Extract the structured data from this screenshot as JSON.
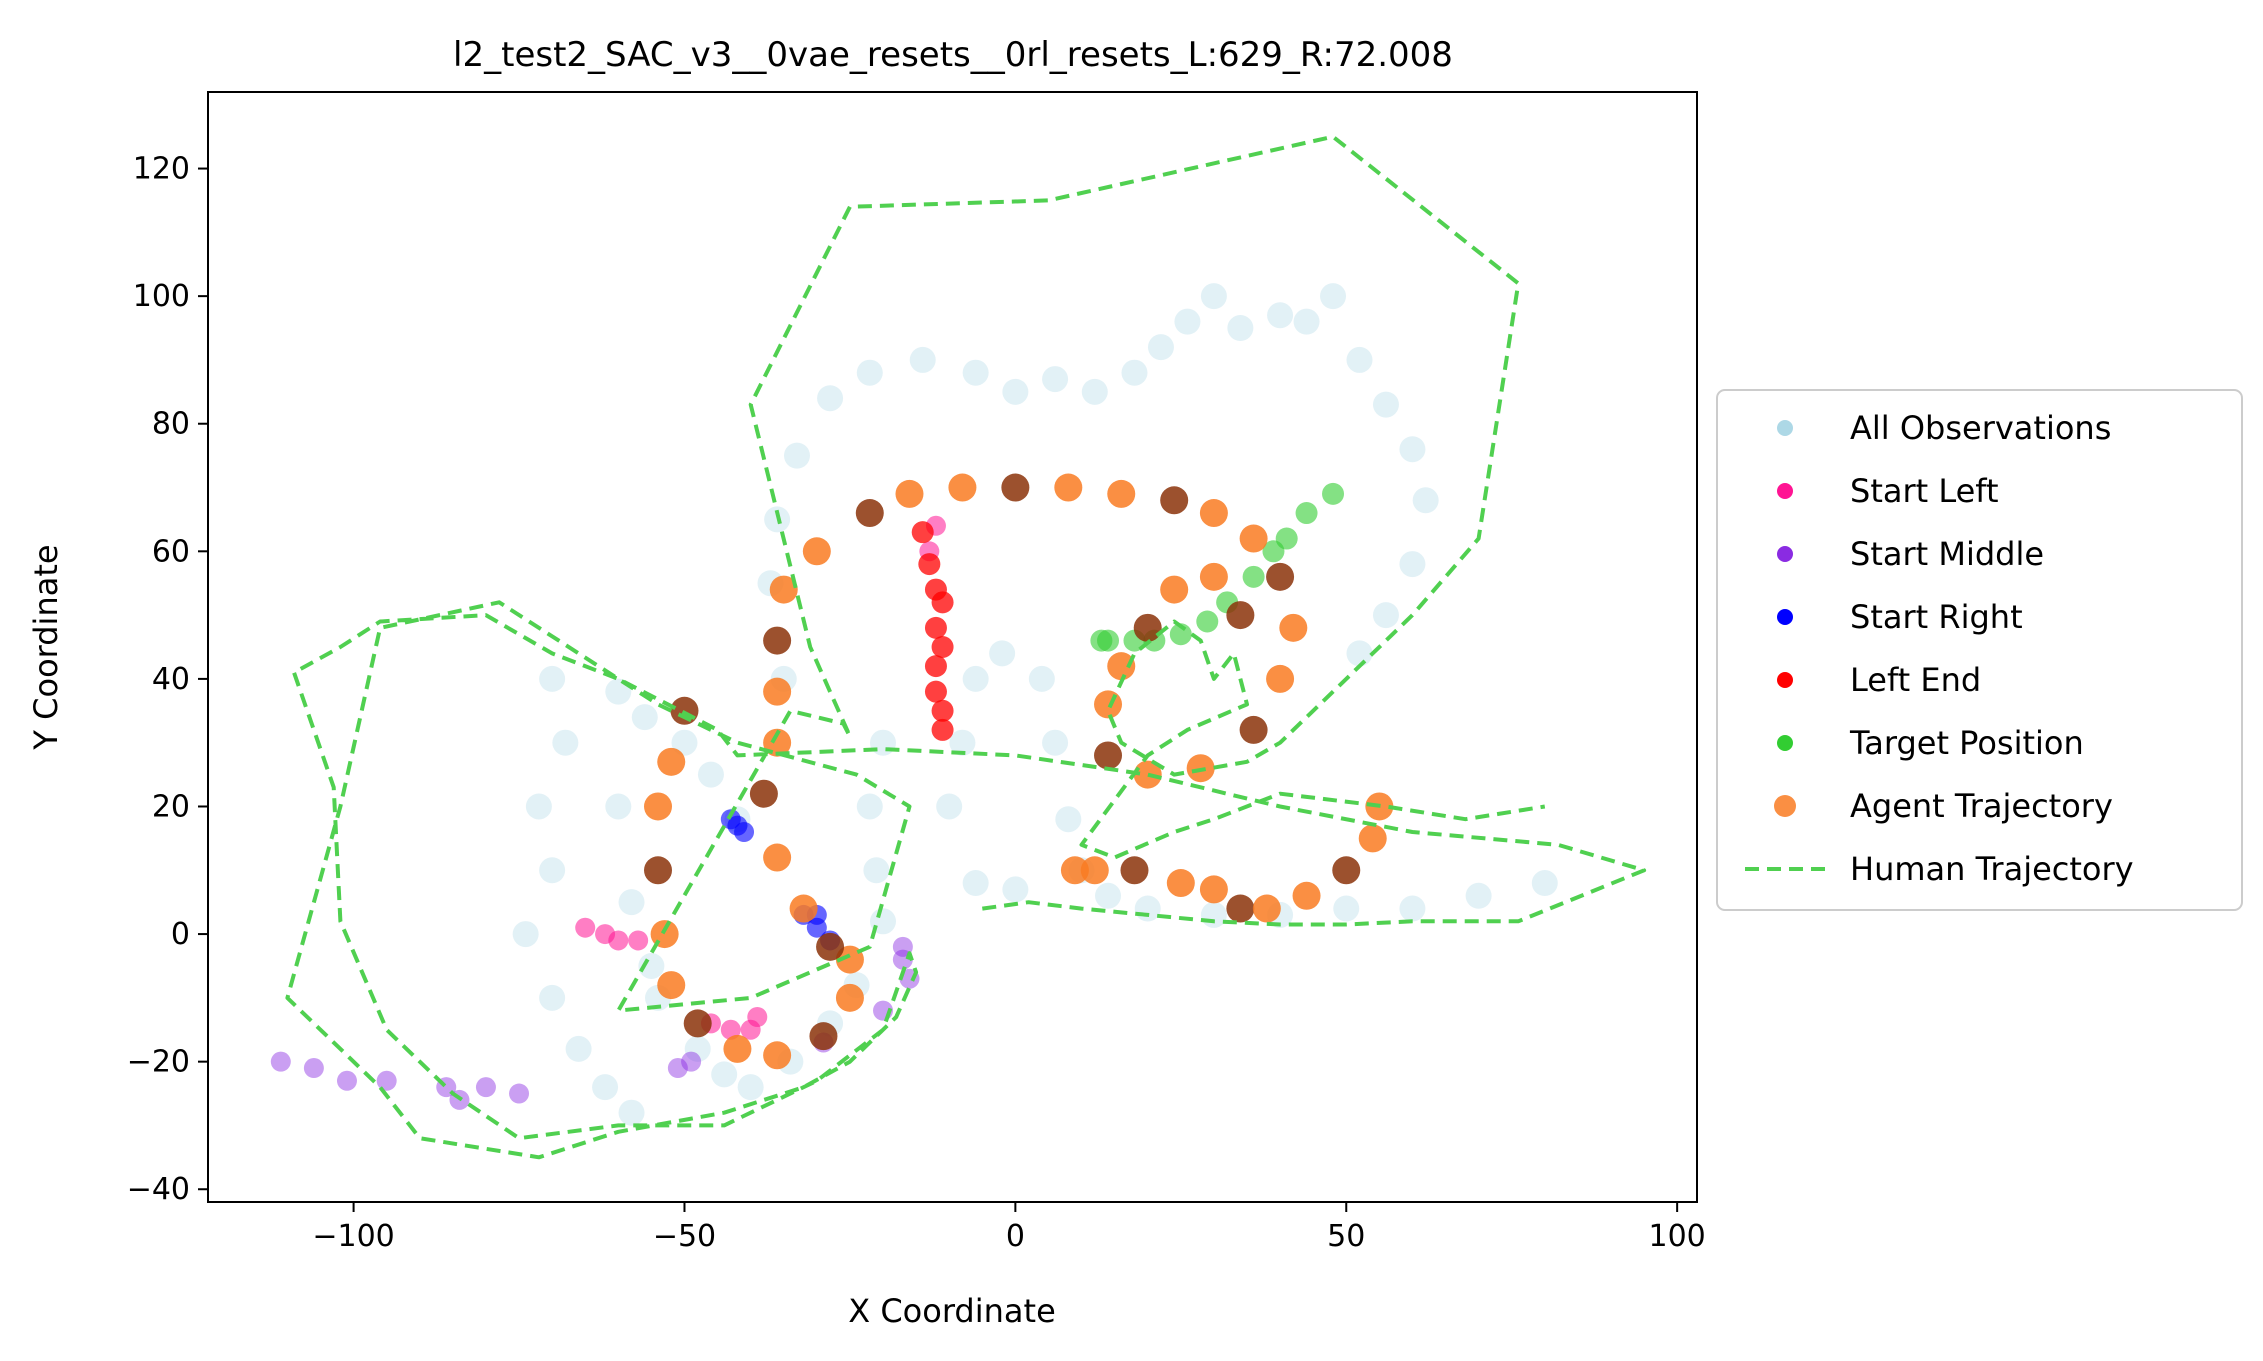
{
  "chart_data": {
    "type": "scatter",
    "title": "l2_test2_SAC_v3__0vae_resets__0rl_resets_L:629_R:72.008",
    "xlabel": "X Coordinate",
    "ylabel": "Y Coordinate",
    "xlim": [
      -122,
      103
    ],
    "ylim": [
      -42,
      132
    ],
    "x_ticks": [
      -100,
      -50,
      0,
      50,
      100
    ],
    "y_ticks": [
      -40,
      -20,
      0,
      20,
      40,
      60,
      80,
      100,
      120
    ],
    "x_tick_labels": [
      "−100",
      "−50",
      "0",
      "50",
      "100"
    ],
    "y_tick_labels": [
      "−40",
      "−20",
      "0",
      "20",
      "40",
      "60",
      "80",
      "100",
      "120"
    ],
    "grid": false,
    "legend_position": "right (outside)",
    "series": [
      {
        "name": "All Observations",
        "color": "#add8e6",
        "marker": "circle",
        "alpha": 0.35,
        "points": [
          [
            -70,
            40
          ],
          [
            -68,
            30
          ],
          [
            -72,
            20
          ],
          [
            -70,
            10
          ],
          [
            -74,
            0
          ],
          [
            -70,
            -10
          ],
          [
            -66,
            -18
          ],
          [
            -62,
            -24
          ],
          [
            -58,
            -28
          ],
          [
            -56,
            34
          ],
          [
            -60,
            20
          ],
          [
            -58,
            5
          ],
          [
            -54,
            -10
          ],
          [
            -44,
            -22
          ],
          [
            -40,
            -24
          ],
          [
            -34,
            -20
          ],
          [
            -28,
            -14
          ],
          [
            -24,
            -8
          ],
          [
            -20,
            2
          ],
          [
            -21,
            10
          ],
          [
            -22,
            20
          ],
          [
            -20,
            30
          ],
          [
            -35,
            40
          ],
          [
            -37,
            55
          ],
          [
            -36,
            65
          ],
          [
            -33,
            75
          ],
          [
            -28,
            84
          ],
          [
            -22,
            88
          ],
          [
            -14,
            90
          ],
          [
            -6,
            88
          ],
          [
            0,
            85
          ],
          [
            6,
            87
          ],
          [
            12,
            85
          ],
          [
            18,
            88
          ],
          [
            22,
            92
          ],
          [
            26,
            96
          ],
          [
            30,
            100
          ],
          [
            34,
            95
          ],
          [
            40,
            97
          ],
          [
            44,
            96
          ],
          [
            48,
            100
          ],
          [
            52,
            90
          ],
          [
            56,
            83
          ],
          [
            60,
            76
          ],
          [
            62,
            68
          ],
          [
            60,
            58
          ],
          [
            56,
            50
          ],
          [
            52,
            44
          ],
          [
            -10,
            20
          ],
          [
            -8,
            30
          ],
          [
            -6,
            40
          ],
          [
            -2,
            44
          ],
          [
            4,
            40
          ],
          [
            6,
            30
          ],
          [
            8,
            18
          ],
          [
            10,
            10
          ],
          [
            14,
            6
          ],
          [
            20,
            4
          ],
          [
            30,
            3
          ],
          [
            40,
            3
          ],
          [
            50,
            4
          ],
          [
            60,
            4
          ],
          [
            70,
            6
          ],
          [
            80,
            8
          ],
          [
            -6,
            8
          ],
          [
            0,
            7
          ],
          [
            -60,
            38
          ],
          [
            -50,
            30
          ],
          [
            -46,
            25
          ],
          [
            -42,
            18
          ],
          [
            -55,
            -5
          ],
          [
            -48,
            -18
          ]
        ]
      },
      {
        "name": "Start Left",
        "color": "#ff1493",
        "marker": "circle",
        "points": [
          [
            -65,
            1
          ],
          [
            -62,
            0
          ],
          [
            -60,
            -1
          ],
          [
            -57,
            -1
          ],
          [
            -46,
            -14
          ],
          [
            -43,
            -15
          ],
          [
            -40,
            -15
          ],
          [
            -39,
            -13
          ],
          [
            -13,
            60
          ],
          [
            -12,
            64
          ]
        ]
      },
      {
        "name": "Start Middle",
        "color": "#8a2be2",
        "marker": "circle",
        "points": [
          [
            -111,
            -20
          ],
          [
            -106,
            -21
          ],
          [
            -101,
            -23
          ],
          [
            -95,
            -23
          ],
          [
            -86,
            -24
          ],
          [
            -84,
            -26
          ],
          [
            -80,
            -24
          ],
          [
            -75,
            -25
          ],
          [
            -51,
            -21
          ],
          [
            -49,
            -20
          ],
          [
            -29,
            -17
          ],
          [
            -20,
            -12
          ],
          [
            -17,
            -4
          ],
          [
            -17,
            -2
          ],
          [
            -16,
            -7
          ]
        ]
      },
      {
        "name": "Start Right",
        "color": "#0000ff",
        "marker": "circle",
        "points": [
          [
            -43,
            18
          ],
          [
            -42,
            17
          ],
          [
            -41,
            16
          ],
          [
            -32,
            3
          ],
          [
            -30,
            3
          ],
          [
            -30,
            1
          ],
          [
            -28,
            -1
          ]
        ]
      },
      {
        "name": "Left End",
        "color": "#ff0000",
        "marker": "circle",
        "points": [
          [
            -14,
            63
          ],
          [
            -13,
            58
          ],
          [
            -12,
            54
          ],
          [
            -11,
            52
          ],
          [
            -12,
            48
          ],
          [
            -11,
            45
          ],
          [
            -12,
            42
          ],
          [
            -12,
            38
          ],
          [
            -11,
            35
          ],
          [
            -11,
            32
          ]
        ]
      },
      {
        "name": "Target Position",
        "color": "#32cd32",
        "marker": "circle",
        "points": [
          [
            48,
            69
          ],
          [
            44,
            66
          ],
          [
            41,
            62
          ],
          [
            39,
            60
          ],
          [
            36,
            56
          ],
          [
            32,
            52
          ],
          [
            29,
            49
          ],
          [
            25,
            47
          ],
          [
            21,
            46
          ],
          [
            18,
            46
          ],
          [
            14,
            46
          ],
          [
            13,
            46
          ]
        ]
      },
      {
        "name": "Agent Trajectory",
        "color": "#f97b22",
        "dark_color": "#8b3209",
        "marker": "circle",
        "points": [
          [
            -50,
            35
          ],
          [
            -52,
            27
          ],
          [
            -54,
            20
          ],
          [
            -54,
            10
          ],
          [
            -53,
            0
          ],
          [
            -52,
            -8
          ],
          [
            -48,
            -14
          ],
          [
            -42,
            -18
          ],
          [
            -36,
            -19
          ],
          [
            -29,
            -16
          ],
          [
            -25,
            -10
          ],
          [
            -25,
            -4
          ],
          [
            -28,
            -2
          ],
          [
            -32,
            4
          ],
          [
            -36,
            12
          ],
          [
            -38,
            22
          ],
          [
            -36,
            30
          ],
          [
            -36,
            38
          ],
          [
            -36,
            46
          ],
          [
            -35,
            54
          ],
          [
            -30,
            60
          ],
          [
            -22,
            66
          ],
          [
            -16,
            69
          ],
          [
            -8,
            70
          ],
          [
            0,
            70
          ],
          [
            8,
            70
          ],
          [
            16,
            69
          ],
          [
            24,
            68
          ],
          [
            30,
            66
          ],
          [
            36,
            62
          ],
          [
            40,
            56
          ],
          [
            42,
            48
          ],
          [
            40,
            40
          ],
          [
            36,
            32
          ],
          [
            28,
            26
          ],
          [
            20,
            25
          ],
          [
            14,
            28
          ],
          [
            14,
            36
          ],
          [
            16,
            42
          ],
          [
            20,
            48
          ],
          [
            24,
            54
          ],
          [
            30,
            56
          ],
          [
            34,
            50
          ],
          [
            9,
            10
          ],
          [
            12,
            10
          ],
          [
            18,
            10
          ],
          [
            25,
            8
          ],
          [
            30,
            7
          ],
          [
            34,
            4
          ],
          [
            38,
            4
          ],
          [
            44,
            6
          ],
          [
            50,
            10
          ],
          [
            54,
            15
          ],
          [
            55,
            20
          ]
        ]
      },
      {
        "name": "Human Trajectory",
        "color": "#50d050",
        "style": "dashed",
        "points": [
          [
            -5,
            4
          ],
          [
            2,
            5
          ],
          [
            10,
            4
          ],
          [
            20,
            3
          ],
          [
            30,
            2
          ],
          [
            40,
            1.5
          ],
          [
            50,
            1.5
          ],
          [
            60,
            2
          ],
          [
            76,
            2
          ],
          [
            95,
            10
          ],
          [
            82,
            14
          ],
          [
            60,
            16
          ],
          [
            40,
            20
          ],
          [
            20,
            25
          ],
          [
            0,
            28
          ],
          [
            -20,
            29
          ],
          [
            -42,
            28
          ],
          [
            -45,
            32
          ],
          [
            -60,
            40
          ],
          [
            -70,
            44
          ],
          [
            -80,
            50
          ],
          [
            -96,
            49
          ],
          [
            -102,
            45
          ],
          [
            -109,
            41
          ],
          [
            -103,
            23
          ],
          [
            -102,
            2
          ],
          [
            -95,
            -15
          ],
          [
            -85,
            -25
          ],
          [
            -75,
            -32
          ],
          [
            -60,
            -30
          ],
          [
            -44,
            -30
          ],
          [
            -30,
            -23
          ],
          [
            -20,
            -15
          ],
          [
            -17,
            -6
          ],
          [
            -16,
            -3
          ],
          [
            -15,
            -6
          ],
          [
            -18,
            -13
          ],
          [
            -25,
            -20
          ],
          [
            -32,
            -24
          ],
          [
            -44,
            -28
          ],
          [
            -60,
            -31
          ],
          [
            -72,
            -35
          ],
          [
            -90,
            -32
          ],
          [
            -96,
            -24
          ],
          [
            -110,
            -10
          ],
          [
            -102,
            20
          ],
          [
            -96,
            48
          ],
          [
            -78,
            52
          ],
          [
            -54,
            36
          ],
          [
            -42,
            30
          ],
          [
            -24,
            25
          ],
          [
            -16,
            20
          ],
          [
            -22,
            -2
          ],
          [
            -40,
            -10
          ],
          [
            -60,
            -12
          ],
          [
            -34,
            35
          ],
          [
            -30,
            34
          ],
          [
            -26,
            33
          ],
          [
            -25,
            31
          ],
          [
            -31,
            45
          ],
          [
            -40,
            83
          ],
          [
            -25,
            114
          ],
          [
            5,
            115
          ],
          [
            48,
            125
          ],
          [
            76,
            102
          ],
          [
            70,
            62
          ],
          [
            60,
            50
          ],
          [
            40,
            30
          ],
          [
            35,
            27
          ],
          [
            24,
            25
          ],
          [
            16,
            30
          ],
          [
            14,
            35
          ],
          [
            18,
            44
          ],
          [
            24,
            49
          ],
          [
            28,
            46
          ],
          [
            30,
            40
          ],
          [
            33,
            44
          ],
          [
            35,
            36
          ],
          [
            26,
            32
          ],
          [
            20,
            28
          ],
          [
            10,
            14
          ],
          [
            15,
            12
          ],
          [
            24,
            16
          ],
          [
            30,
            18
          ],
          [
            40,
            22
          ],
          [
            56,
            20
          ],
          [
            68,
            18
          ],
          [
            80,
            20
          ]
        ]
      }
    ]
  }
}
